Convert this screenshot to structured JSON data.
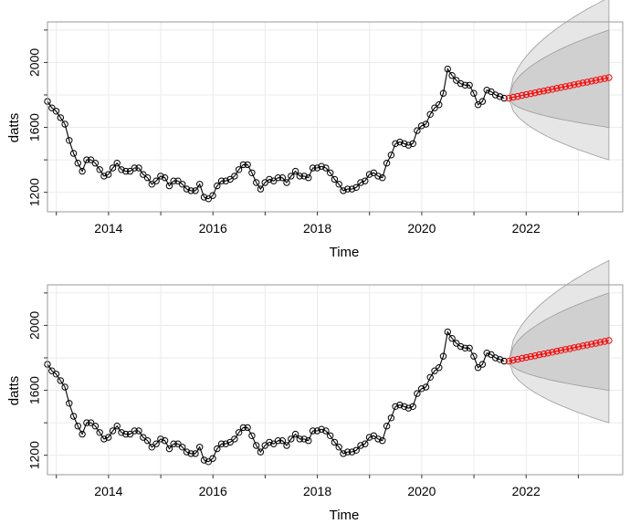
{
  "chart_data": [
    {
      "type": "line",
      "xlabel": "Time",
      "ylabel": "datts",
      "xlim": [
        2012.83,
        2023.85
      ],
      "ylim": [
        1080,
        2250
      ],
      "x_ticks": [
        2014,
        2016,
        2018,
        2020,
        2022
      ],
      "y_ticks": [
        1200,
        1600,
        2000
      ],
      "grid": true,
      "series": [
        {
          "role": "observed",
          "color": "#000000",
          "start": 2012.83,
          "frequency": 12,
          "values": [
            1760,
            1720,
            1700,
            1660,
            1620,
            1520,
            1440,
            1380,
            1330,
            1400,
            1400,
            1380,
            1340,
            1300,
            1310,
            1350,
            1380,
            1340,
            1330,
            1330,
            1350,
            1350,
            1310,
            1290,
            1250,
            1270,
            1300,
            1290,
            1240,
            1270,
            1270,
            1250,
            1220,
            1210,
            1210,
            1250,
            1170,
            1160,
            1180,
            1240,
            1270,
            1270,
            1280,
            1300,
            1340,
            1370,
            1370,
            1320,
            1260,
            1220,
            1260,
            1280,
            1270,
            1290,
            1290,
            1260,
            1300,
            1330,
            1300,
            1300,
            1290,
            1350,
            1350,
            1360,
            1350,
            1320,
            1280,
            1250,
            1210,
            1220,
            1220,
            1230,
            1260,
            1270,
            1310,
            1320,
            1300,
            1290,
            1380,
            1430,
            1500,
            1510,
            1500,
            1490,
            1500,
            1580,
            1610,
            1620,
            1680,
            1720,
            1740,
            1810,
            1960,
            1920,
            1890,
            1870,
            1860,
            1860,
            1810,
            1740,
            1760,
            1830,
            1820,
            1800,
            1790,
            1780
          ]
        },
        {
          "role": "forecast",
          "color": "#ff0000",
          "start": 2021.67,
          "frequency": 12,
          "values": [
            1780,
            1786,
            1791,
            1797,
            1802,
            1808,
            1813,
            1819,
            1824,
            1830,
            1835,
            1841,
            1846,
            1852,
            1857,
            1863,
            1868,
            1874,
            1879,
            1885,
            1890,
            1896,
            1901,
            1907
          ]
        }
      ],
      "bands": [
        {
          "level": "outer",
          "color": "#e6e6e6",
          "lower_start": 1780,
          "lower_end": 1400,
          "upper_start": 1780,
          "upper_end": 2400
        },
        {
          "level": "inner",
          "color": "#d0d0d0",
          "lower_start": 1780,
          "lower_end": 1600,
          "upper_start": 1780,
          "upper_end": 2200
        }
      ]
    },
    {
      "type": "line",
      "xlabel": "Time",
      "ylabel": "datts",
      "xlim": [
        2012.83,
        2023.85
      ],
      "ylim": [
        1080,
        2250
      ],
      "x_ticks": [
        2014,
        2016,
        2018,
        2020,
        2022
      ],
      "y_ticks": [
        1200,
        1600,
        2000
      ],
      "grid": true,
      "series": [
        {
          "role": "observed",
          "color": "#000000",
          "start": 2012.83,
          "frequency": 12,
          "values": [
            1760,
            1720,
            1700,
            1660,
            1620,
            1520,
            1440,
            1380,
            1330,
            1400,
            1400,
            1380,
            1340,
            1300,
            1310,
            1350,
            1380,
            1340,
            1330,
            1330,
            1350,
            1350,
            1310,
            1290,
            1250,
            1270,
            1300,
            1290,
            1240,
            1270,
            1270,
            1250,
            1220,
            1210,
            1210,
            1250,
            1170,
            1160,
            1180,
            1240,
            1270,
            1270,
            1280,
            1300,
            1340,
            1370,
            1370,
            1320,
            1260,
            1220,
            1260,
            1280,
            1270,
            1290,
            1290,
            1260,
            1300,
            1330,
            1300,
            1300,
            1290,
            1350,
            1350,
            1360,
            1350,
            1320,
            1280,
            1250,
            1210,
            1220,
            1220,
            1230,
            1260,
            1270,
            1310,
            1320,
            1300,
            1290,
            1380,
            1430,
            1500,
            1510,
            1500,
            1490,
            1500,
            1580,
            1610,
            1620,
            1680,
            1720,
            1740,
            1810,
            1960,
            1920,
            1890,
            1870,
            1860,
            1860,
            1810,
            1740,
            1760,
            1830,
            1820,
            1800,
            1790,
            1780
          ]
        },
        {
          "role": "forecast",
          "color": "#ff0000",
          "start": 2021.67,
          "frequency": 12,
          "values": [
            1780,
            1786,
            1791,
            1797,
            1802,
            1808,
            1813,
            1819,
            1824,
            1830,
            1835,
            1841,
            1846,
            1852,
            1857,
            1863,
            1868,
            1874,
            1879,
            1885,
            1890,
            1896,
            1901,
            1907
          ]
        }
      ],
      "bands": [
        {
          "level": "outer",
          "color": "#e6e6e6",
          "lower_start": 1780,
          "lower_end": 1400,
          "upper_start": 1780,
          "upper_end": 2400
        },
        {
          "level": "inner",
          "color": "#d0d0d0",
          "lower_start": 1780,
          "lower_end": 1600,
          "upper_start": 1780,
          "upper_end": 2200
        }
      ]
    }
  ]
}
